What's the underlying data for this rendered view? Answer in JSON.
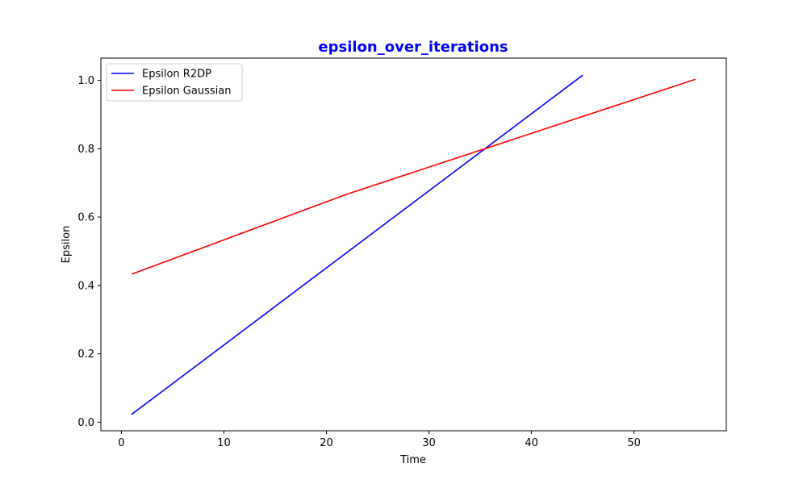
{
  "chart_data": {
    "type": "line",
    "title": "epsilon_over_iterations",
    "title_color": "#0000ff",
    "xlabel": "Time",
    "ylabel": "Epsilon",
    "xlim": [
      -2,
      59
    ],
    "ylim": [
      -0.025,
      1.065
    ],
    "xticks": [
      0,
      10,
      20,
      30,
      40,
      50
    ],
    "xtick_labels": [
      "0",
      "10",
      "20",
      "30",
      "40",
      "50"
    ],
    "yticks": [
      0.0,
      0.2,
      0.4,
      0.6,
      0.8,
      1.0
    ],
    "ytick_labels": [
      "0.0",
      "0.2",
      "0.4",
      "0.6",
      "0.8",
      "1.0"
    ],
    "grid": false,
    "legend_position": "top-left",
    "series": [
      {
        "name": "Epsilon R2DP",
        "color": "#0000ff",
        "x": [
          1,
          45
        ],
        "y": [
          0.023,
          1.015
        ]
      },
      {
        "name": "Epsilon Gaussian",
        "color": "#ff0000",
        "x": [
          1,
          22,
          56
        ],
        "y": [
          0.433,
          0.667,
          1.003
        ]
      }
    ]
  }
}
